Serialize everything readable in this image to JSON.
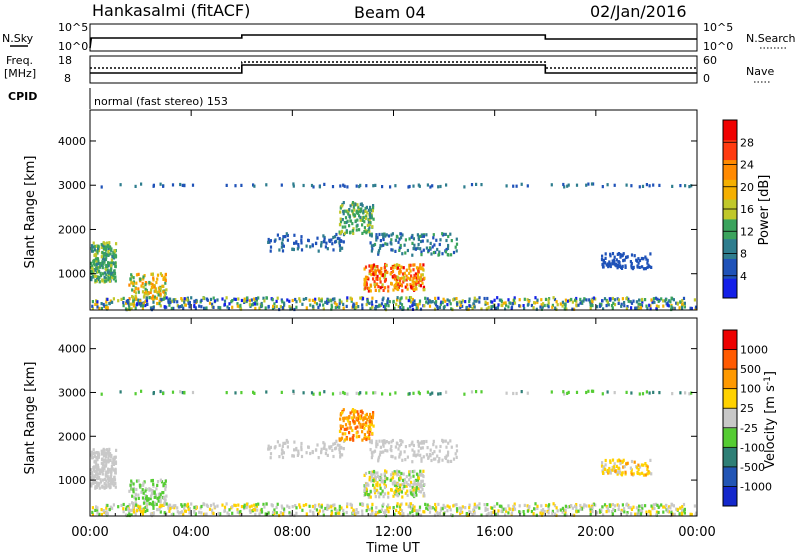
{
  "header": {
    "station": "Hankasalmi (fitACF)",
    "beam": "Beam 04",
    "date": "02/Jan/2016",
    "cpid_label": "CPID",
    "cpid_text": "normal (fast stereo) 153"
  },
  "strips": {
    "nsky_label": "N.Sky",
    "nsky_ticks": [
      "10^5",
      "10^0"
    ],
    "nsearch_label": "N.Search",
    "nsearch_ticks": [
      "10^5",
      "10^0"
    ],
    "freq_label": "Freq.",
    "freq_unit": "[MHz]",
    "freq_ticks": [
      "18",
      "8"
    ],
    "nave_label": "Nave",
    "nave_ticks": [
      "60",
      "0"
    ]
  },
  "chart_data": [
    {
      "type": "heatmap",
      "title": "",
      "xlabel": "",
      "ylabel": "Slant Range [km]",
      "xlim": [
        "00:00",
        "24:00"
      ],
      "ylim": [
        180,
        4700
      ],
      "yticks": [
        1000,
        2000,
        3000,
        4000
      ],
      "colorbar_label": "Power [dB]",
      "colorbar_ticks": [
        4,
        8,
        12,
        16,
        20,
        24,
        28
      ],
      "colorscale": [
        "#1420e8",
        "#1f52b8",
        "#2e7d8e",
        "#3aa35c",
        "#c0c82a",
        "#f5b000",
        "#ff8a00",
        "#ff3b10",
        "#f00000"
      ],
      "grid": false
    },
    {
      "type": "heatmap",
      "title": "",
      "xlabel": "Time UT",
      "ylabel": "Slant Range [km]",
      "xlim": [
        "00:00",
        "24:00"
      ],
      "xticks": [
        "00:00",
        "04:00",
        "08:00",
        "12:00",
        "16:00",
        "20:00",
        "00:00"
      ],
      "ylim": [
        180,
        4700
      ],
      "yticks": [
        1000,
        2000,
        3000,
        4000
      ],
      "colorbar_label": "Velocity [m s^-1]",
      "colorbar_ticks": [
        "1000",
        "500",
        "100",
        "25",
        "-25",
        "-100",
        "-500",
        "-1000"
      ],
      "colorscale": [
        "#1428cc",
        "#2255b5",
        "#2e7f76",
        "#55cc33",
        "#c8c8c8",
        "#ffd200",
        "#ff9900",
        "#ff5a00",
        "#ee0000"
      ],
      "grid": false
    }
  ]
}
